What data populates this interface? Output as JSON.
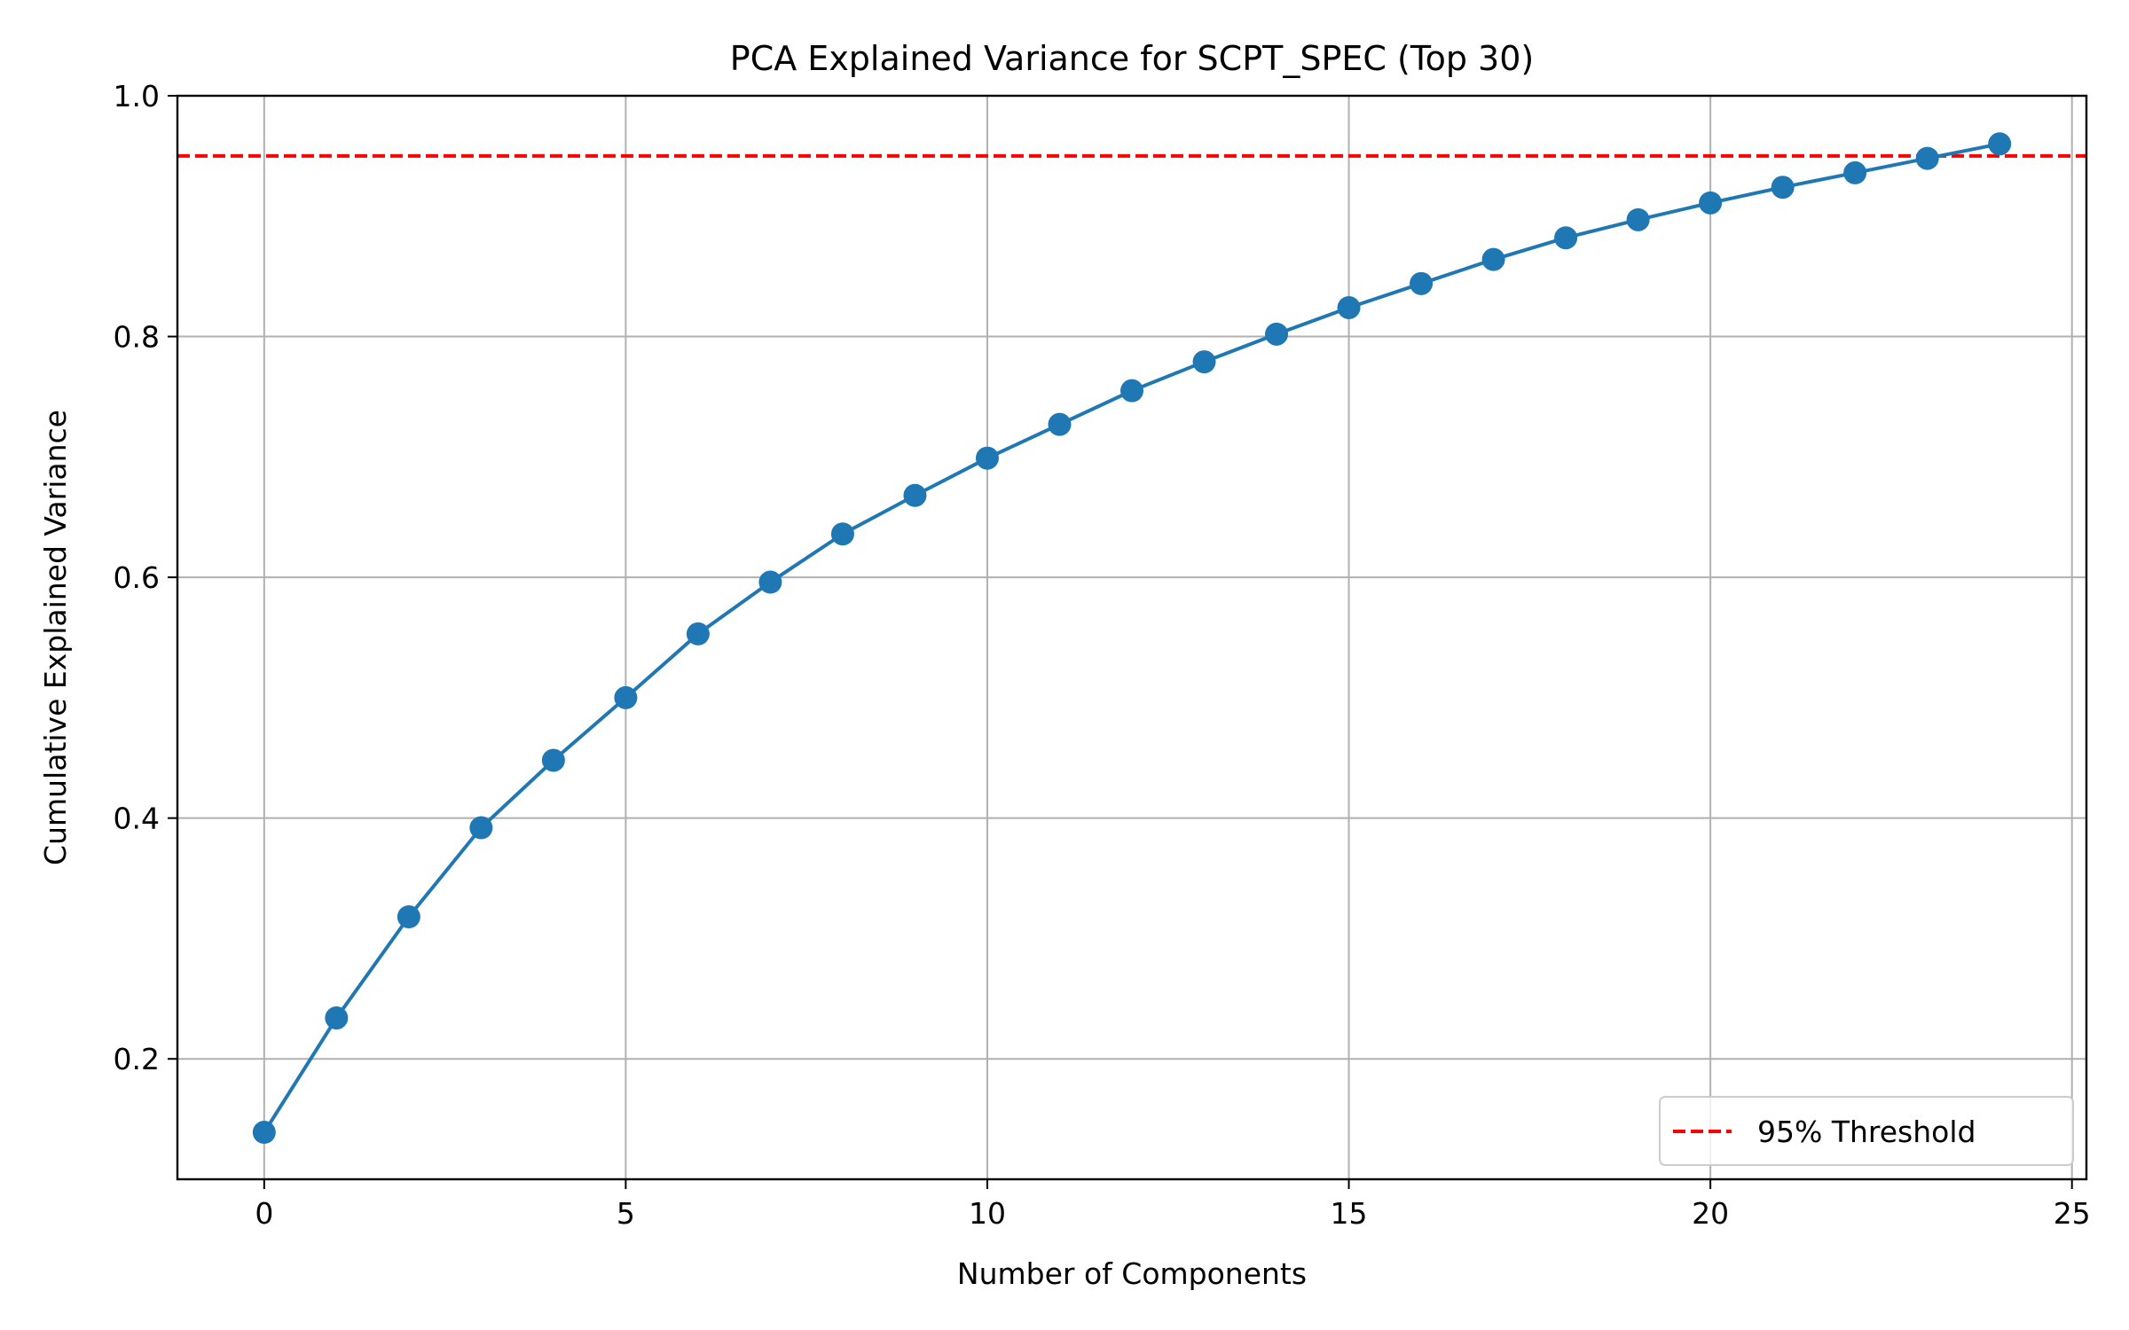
{
  "chart_data": {
    "type": "line",
    "title": "PCA Explained Variance for SCPT_SPEC (Top 30)",
    "xlabel": "Number of Components",
    "ylabel": "Cumulative Explained Variance",
    "xlim": [
      -1.2,
      25.2
    ],
    "ylim": [
      0.1,
      1.0
    ],
    "xticks": [
      0,
      5,
      10,
      15,
      20,
      25
    ],
    "yticks": [
      0.2,
      0.4,
      0.6,
      0.8,
      1.0
    ],
    "xtick_labels": [
      "0",
      "5",
      "10",
      "15",
      "20",
      "25"
    ],
    "ytick_labels": [
      "0.2",
      "0.4",
      "0.6",
      "0.8",
      "1.0"
    ],
    "grid": true,
    "legend_position": "lower-right",
    "series": [
      {
        "color": "#1f77b4",
        "marker": "circle",
        "x": [
          0,
          1,
          2,
          3,
          4,
          5,
          6,
          7,
          8,
          9,
          10,
          11,
          12,
          13,
          14,
          15,
          16,
          17,
          18,
          19,
          20,
          21,
          22,
          23,
          24
        ],
        "y": [
          0.139,
          0.234,
          0.318,
          0.392,
          0.448,
          0.5,
          0.553,
          0.596,
          0.636,
          0.668,
          0.699,
          0.727,
          0.755,
          0.779,
          0.802,
          0.824,
          0.844,
          0.864,
          0.882,
          0.897,
          0.911,
          0.924,
          0.936,
          0.948,
          0.96
        ]
      }
    ],
    "reference_lines": [
      {
        "name": "95% Threshold",
        "orientation": "horizontal",
        "y": 0.95,
        "color": "#ff0000",
        "style": "dashed"
      }
    ]
  }
}
